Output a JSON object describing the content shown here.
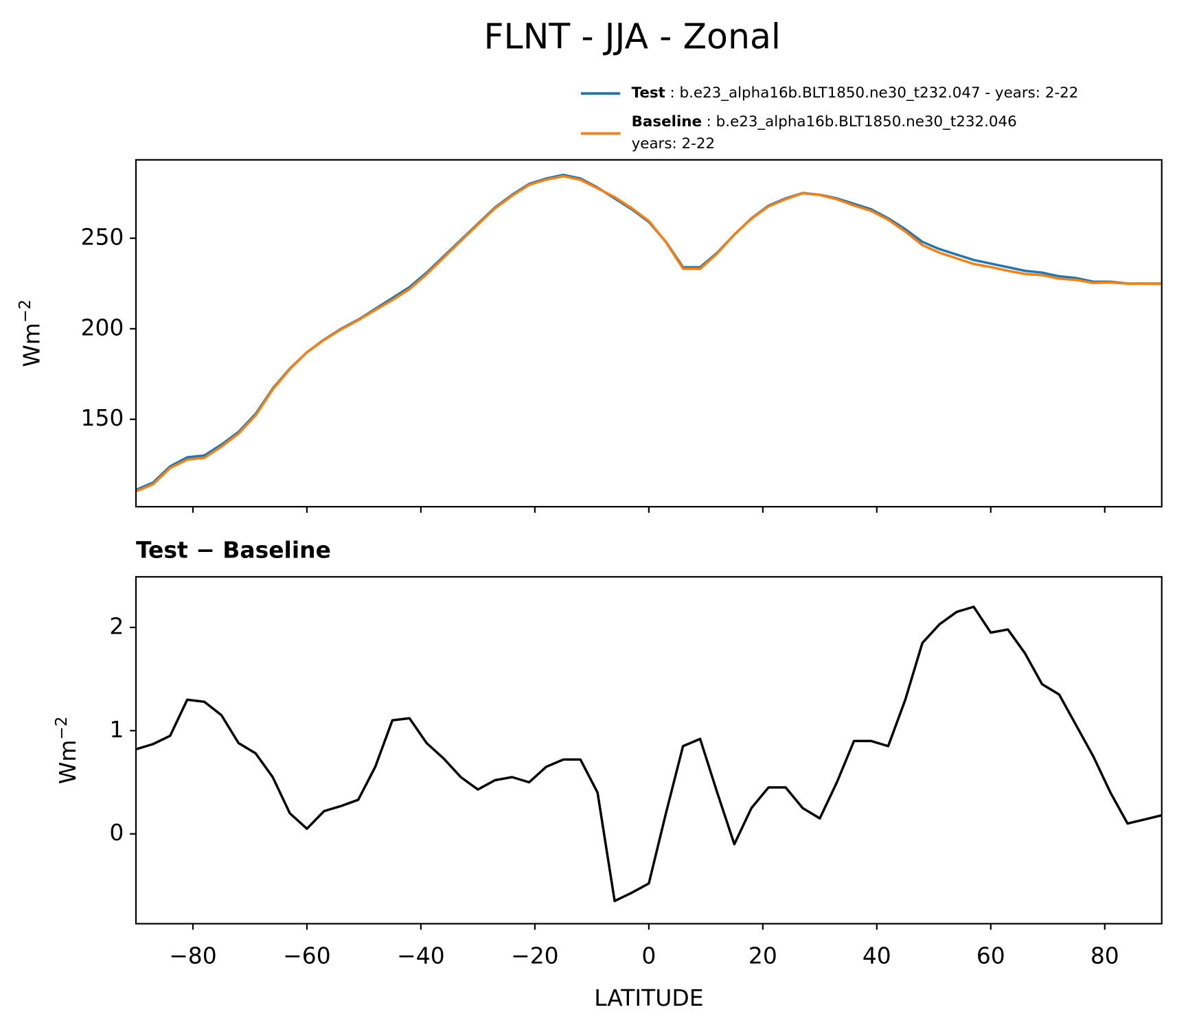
{
  "title": "FLNT - JJA - Zonal",
  "chart_data": [
    {
      "type": "line",
      "x": [
        -90,
        -87,
        -84,
        -81,
        -78,
        -75,
        -72,
        -69,
        -66,
        -63,
        -60,
        -57,
        -54,
        -51,
        -48,
        -45,
        -42,
        -39,
        -36,
        -33,
        -30,
        -27,
        -24,
        -21,
        -18,
        -15,
        -12,
        -9,
        -6,
        -3,
        0,
        3,
        6,
        9,
        12,
        15,
        18,
        21,
        24,
        27,
        30,
        33,
        36,
        39,
        42,
        45,
        48,
        51,
        54,
        57,
        60,
        63,
        66,
        69,
        72,
        75,
        78,
        81,
        84,
        87,
        90
      ],
      "series": [
        {
          "name": "Test",
          "label": ": b.e23_alpha16b.BLT1850.ne30_t232.047 - years: 2-22",
          "color": "#1f77b4",
          "values": [
            111,
            115,
            124,
            129,
            130,
            136,
            143,
            153,
            167,
            178,
            187,
            194,
            200,
            205,
            211,
            217,
            223,
            231,
            240,
            249,
            258,
            267,
            274,
            280,
            283,
            285,
            283,
            278,
            272,
            266,
            259,
            248,
            234,
            234,
            242,
            252,
            261,
            268,
            272,
            275,
            274,
            272,
            269,
            266,
            261,
            255,
            248,
            244,
            241,
            238,
            236,
            234,
            232,
            231,
            229,
            228,
            226,
            226,
            225,
            225,
            225
          ]
        },
        {
          "name": "Baseline",
          "label_lines": [
            ": b.e23_alpha16b.BLT1850.ne30_t232.046",
            "years: 2-22"
          ],
          "color": "#ff7f0e",
          "values": [
            110.2,
            114.1,
            123.1,
            127.7,
            128.7,
            134.9,
            142.1,
            152.2,
            166.5,
            177.8,
            187.0,
            193.8,
            199.7,
            204.7,
            210.4,
            215.9,
            221.9,
            230.1,
            239.3,
            248.5,
            257.6,
            266.5,
            273.5,
            279.5,
            282.4,
            284.3,
            282.3,
            277.6,
            272.7,
            266.6,
            259.5,
            247.8,
            233.2,
            233.1,
            241.6,
            252.1,
            260.8,
            267.6,
            271.6,
            274.8,
            273.9,
            271.5,
            268.1,
            265.1,
            260.2,
            253.7,
            246.2,
            242.0,
            238.9,
            235.8,
            234.1,
            232.0,
            230.3,
            229.6,
            227.7,
            227.0,
            225.3,
            225.6,
            224.9,
            224.9,
            224.8
          ]
        }
      ],
      "ylabel": "Wm",
      "ylabel_exponent": "−2",
      "xlim": [
        -90,
        90
      ],
      "xticks": [
        -80,
        -60,
        -40,
        -20,
        0,
        20,
        40,
        60,
        80
      ],
      "ylim": [
        101.7,
        293.3
      ],
      "yticks": [
        150,
        200,
        250
      ]
    },
    {
      "type": "line",
      "title": "Test − Baseline",
      "x": [
        -90,
        -87,
        -84,
        -81,
        -78,
        -75,
        -72,
        -69,
        -66,
        -63,
        -60,
        -57,
        -54,
        -51,
        -48,
        -45,
        -42,
        -39,
        -36,
        -33,
        -30,
        -27,
        -24,
        -21,
        -18,
        -15,
        -12,
        -9,
        -6,
        -3,
        0,
        3,
        6,
        9,
        12,
        15,
        18,
        21,
        24,
        27,
        30,
        33,
        36,
        39,
        42,
        45,
        48,
        51,
        54,
        57,
        60,
        63,
        66,
        69,
        72,
        75,
        78,
        81,
        84,
        87,
        90
      ],
      "series": [
        {
          "color": "#000000",
          "values": [
            0.82,
            0.87,
            0.95,
            1.3,
            1.28,
            1.15,
            0.88,
            0.78,
            0.55,
            0.2,
            0.05,
            0.22,
            0.27,
            0.33,
            0.65,
            1.1,
            1.12,
            0.88,
            0.73,
            0.55,
            0.43,
            0.52,
            0.55,
            0.5,
            0.65,
            0.72,
            0.72,
            0.4,
            -0.65,
            -0.57,
            -0.48,
            0.2,
            0.85,
            0.92,
            0.4,
            -0.1,
            0.25,
            0.45,
            0.45,
            0.25,
            0.15,
            0.5,
            0.9,
            0.9,
            0.85,
            1.3,
            1.85,
            2.03,
            2.15,
            2.2,
            1.95,
            1.98,
            1.75,
            1.45,
            1.35,
            1.05,
            0.75,
            0.4,
            0.1,
            0.14,
            0.18
          ]
        }
      ],
      "xlabel": "LATITUDE",
      "ylabel": "Wm",
      "ylabel_exponent": "−2",
      "xlim": [
        -90,
        90
      ],
      "xticks": [
        {
          "value": -80,
          "label": "−80"
        },
        {
          "value": -60,
          "label": "−60"
        },
        {
          "value": -40,
          "label": "−40"
        },
        {
          "value": -20,
          "label": "−20"
        },
        0,
        20,
        40,
        60,
        80
      ],
      "ylim": [
        -0.87,
        2.49
      ],
      "yticks": [
        0,
        1,
        2
      ]
    }
  ]
}
